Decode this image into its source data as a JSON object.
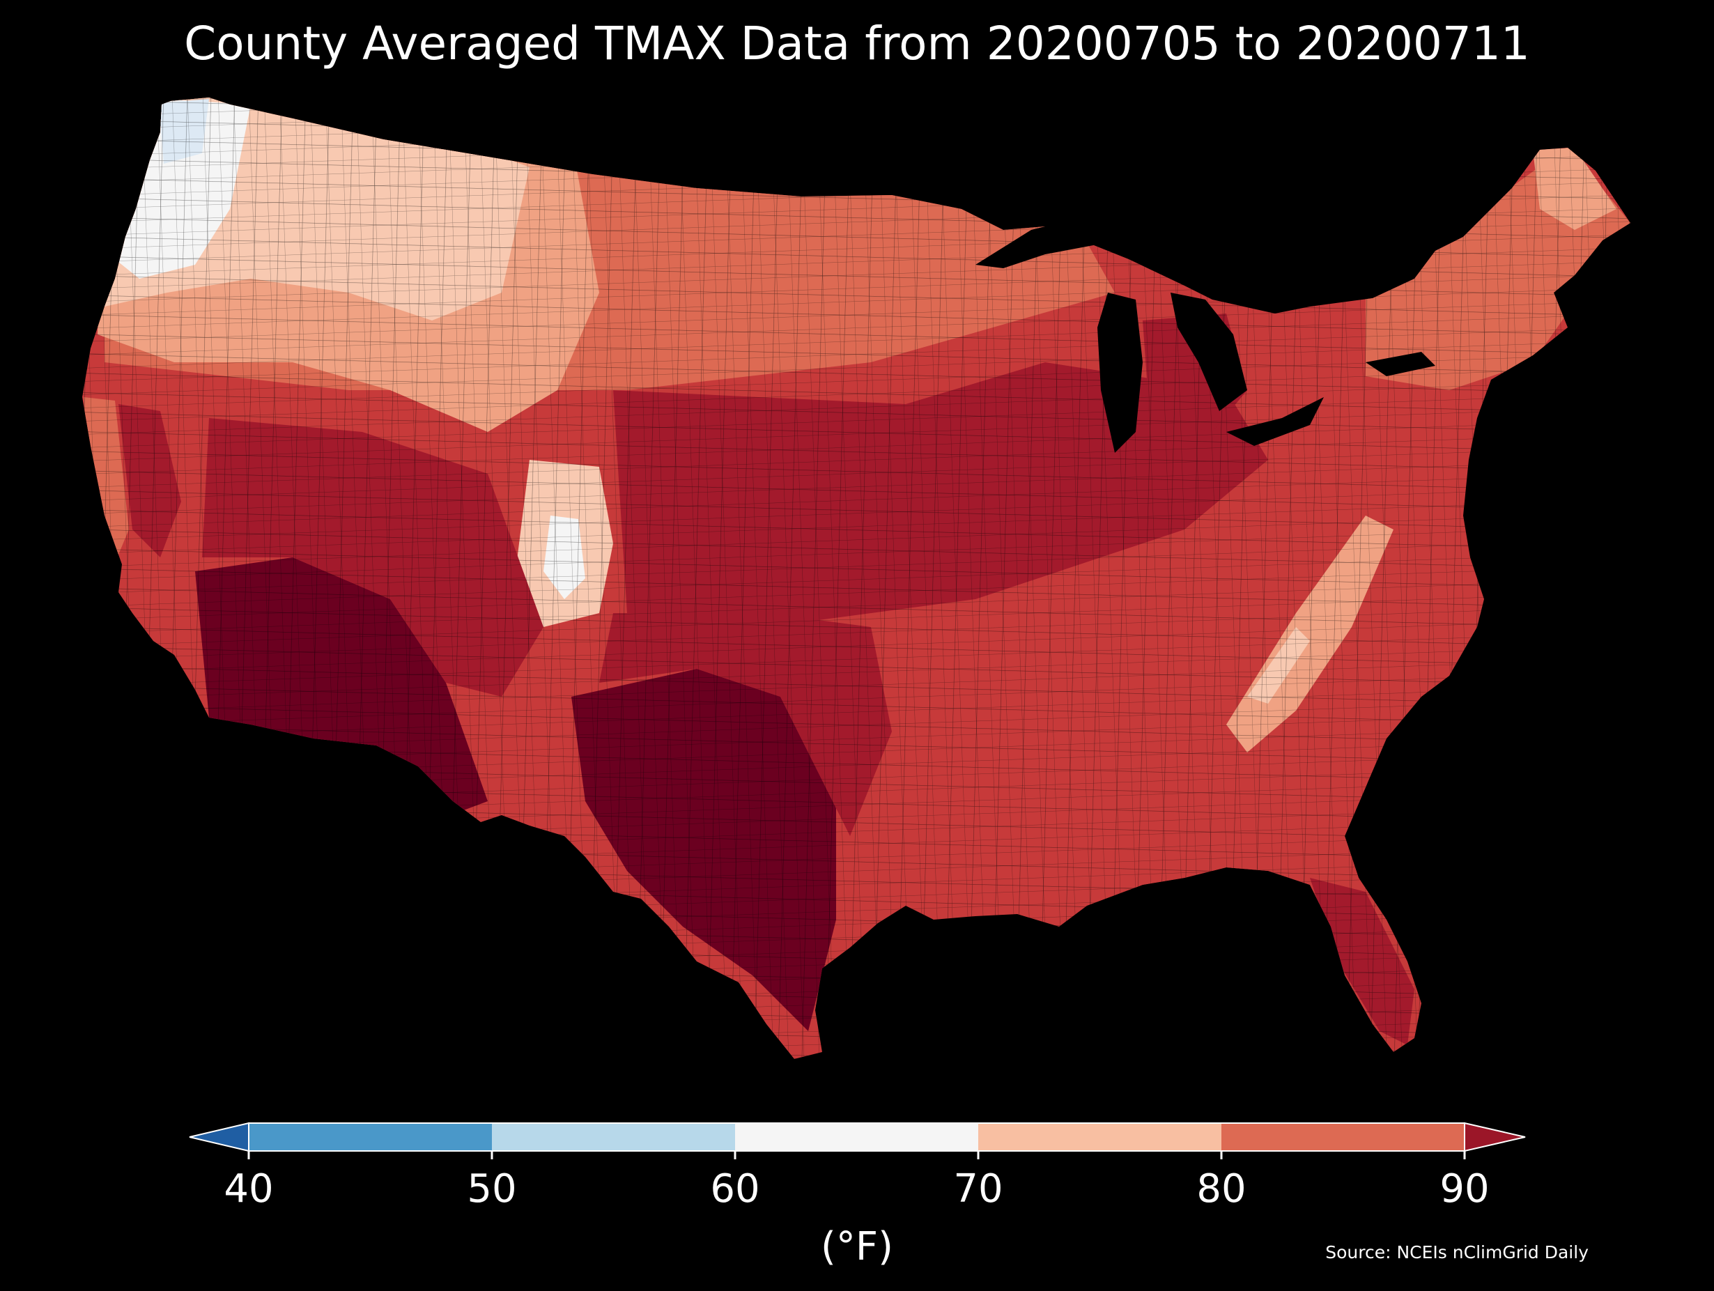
{
  "title": "County Averaged TMAX Data from 20200705 to 20200711",
  "source": "Source: NCEIs nClimGrid Daily",
  "colorbar": {
    "unit_label": "(°F)",
    "ticks": [
      "40",
      "50",
      "60",
      "70",
      "80",
      "90"
    ],
    "bins": [
      {
        "range": [
          40,
          50
        ],
        "color": "#4a98c9"
      },
      {
        "range": [
          50,
          60
        ],
        "color": "#b7d8ea"
      },
      {
        "range": [
          60,
          70
        ],
        "color": "#f5f5f5"
      },
      {
        "range": [
          70,
          80
        ],
        "color": "#f8bfa2"
      },
      {
        "range": [
          80,
          90
        ],
        "color": "#dd6a53"
      }
    ],
    "extend_low_color": "#1f5ea3",
    "extend_high_color": "#9b1628"
  },
  "map": {
    "region": "Contiguous United States, counties",
    "variable": "TMAX",
    "period": [
      "20200705",
      "20200711"
    ],
    "colors": {
      "extreme_heat": "#6b0020",
      "very_hot": "#a31a2c",
      "hot": "#c73a3a",
      "warm": "#dd6a53",
      "mild": "#f0a283",
      "cool": "#f8c9b1",
      "coolest": "#f5f5f5",
      "coastal_cold": "#dde9f4",
      "background": "#000000"
    }
  }
}
